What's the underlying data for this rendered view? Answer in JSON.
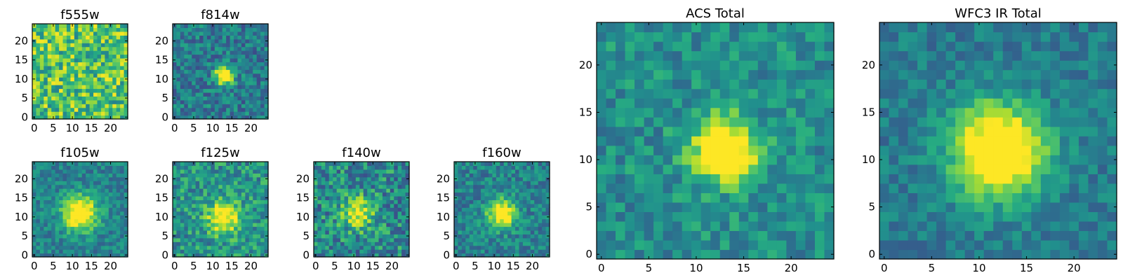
{
  "colors": {
    "colormap": "viridis",
    "low": "#440154",
    "mid": "#21918c",
    "high": "#fde725",
    "frame": "#000000",
    "background": "#ffffff"
  },
  "chart_data": [
    {
      "type": "heatmap",
      "title": "f555w",
      "x_ticks": [
        "0",
        "5",
        "10",
        "15",
        "20"
      ],
      "y_ticks": [
        "0",
        "5",
        "10",
        "15",
        "20"
      ],
      "xlim": [
        0,
        25
      ],
      "ylim": [
        0,
        25
      ],
      "grid": false,
      "source": {
        "peak": [
          12,
          11
        ],
        "strength": 0.0,
        "width": 2.0
      },
      "noise": 0.55,
      "base": 0.72,
      "seed": 11
    },
    {
      "type": "heatmap",
      "title": "f814w",
      "x_ticks": [
        "0",
        "5",
        "10",
        "15",
        "20"
      ],
      "y_ticks": [
        "0",
        "5",
        "10",
        "15",
        "20"
      ],
      "xlim": [
        0,
        25
      ],
      "ylim": [
        0,
        25
      ],
      "grid": false,
      "source": {
        "peak": [
          13,
          11
        ],
        "strength": 0.95,
        "width": 1.6
      },
      "noise": 0.38,
      "base": 0.42,
      "seed": 23
    },
    {
      "type": "heatmap",
      "title": "f105w",
      "x_ticks": [
        "0",
        "5",
        "10",
        "15",
        "20"
      ],
      "y_ticks": [
        "0",
        "5",
        "10",
        "15",
        "20"
      ],
      "xlim": [
        0,
        25
      ],
      "ylim": [
        0,
        25
      ],
      "grid": false,
      "source": {
        "peak": [
          12,
          11
        ],
        "strength": 0.75,
        "width": 3.2
      },
      "noise": 0.3,
      "base": 0.45,
      "seed": 37
    },
    {
      "type": "heatmap",
      "title": "f125w",
      "x_ticks": [
        "0",
        "5",
        "10",
        "15",
        "20"
      ],
      "y_ticks": [
        "0",
        "5",
        "10",
        "15",
        "20"
      ],
      "xlim": [
        0,
        25
      ],
      "ylim": [
        0,
        25
      ],
      "grid": false,
      "source": {
        "peak": [
          13,
          10
        ],
        "strength": 0.6,
        "width": 3.0
      },
      "noise": 0.42,
      "base": 0.52,
      "seed": 41
    },
    {
      "type": "heatmap",
      "title": "f140w",
      "x_ticks": [
        "0",
        "5",
        "10",
        "15",
        "20"
      ],
      "y_ticks": [
        "0",
        "5",
        "10",
        "15",
        "20"
      ],
      "xlim": [
        0,
        25
      ],
      "ylim": [
        0,
        25
      ],
      "grid": false,
      "source": {
        "peak": [
          11,
          11
        ],
        "strength": 0.55,
        "width": 2.8
      },
      "noise": 0.5,
      "base": 0.48,
      "seed": 53
    },
    {
      "type": "heatmap",
      "title": "f160w",
      "x_ticks": [
        "0",
        "5",
        "10",
        "15",
        "20"
      ],
      "y_ticks": [
        "0",
        "5",
        "10",
        "15",
        "20"
      ],
      "xlim": [
        0,
        25
      ],
      "ylim": [
        0,
        25
      ],
      "grid": false,
      "source": {
        "peak": [
          12,
          11
        ],
        "strength": 0.7,
        "width": 2.6
      },
      "noise": 0.34,
      "base": 0.45,
      "seed": 67
    },
    {
      "type": "heatmap",
      "title": "ACS Total",
      "x_ticks": [
        "0",
        "5",
        "10",
        "15",
        "20"
      ],
      "y_ticks": [
        "0",
        "5",
        "10",
        "15",
        "20"
      ],
      "xlim": [
        0,
        25
      ],
      "ylim": [
        0,
        25
      ],
      "grid": false,
      "source": {
        "peak": [
          13,
          11
        ],
        "strength": 0.85,
        "width": 2.3
      },
      "noise": 0.32,
      "base": 0.5,
      "seed": 79
    },
    {
      "type": "heatmap",
      "title": "WFC3 IR Total",
      "x_ticks": [
        "0",
        "5",
        "10",
        "15",
        "20"
      ],
      "y_ticks": [
        "0",
        "5",
        "10",
        "15",
        "20"
      ],
      "xlim": [
        0,
        25
      ],
      "ylim": [
        0,
        25
      ],
      "grid": false,
      "source": {
        "peak": [
          12,
          11
        ],
        "strength": 0.85,
        "width": 3.4
      },
      "noise": 0.24,
      "base": 0.42,
      "seed": 97
    }
  ]
}
